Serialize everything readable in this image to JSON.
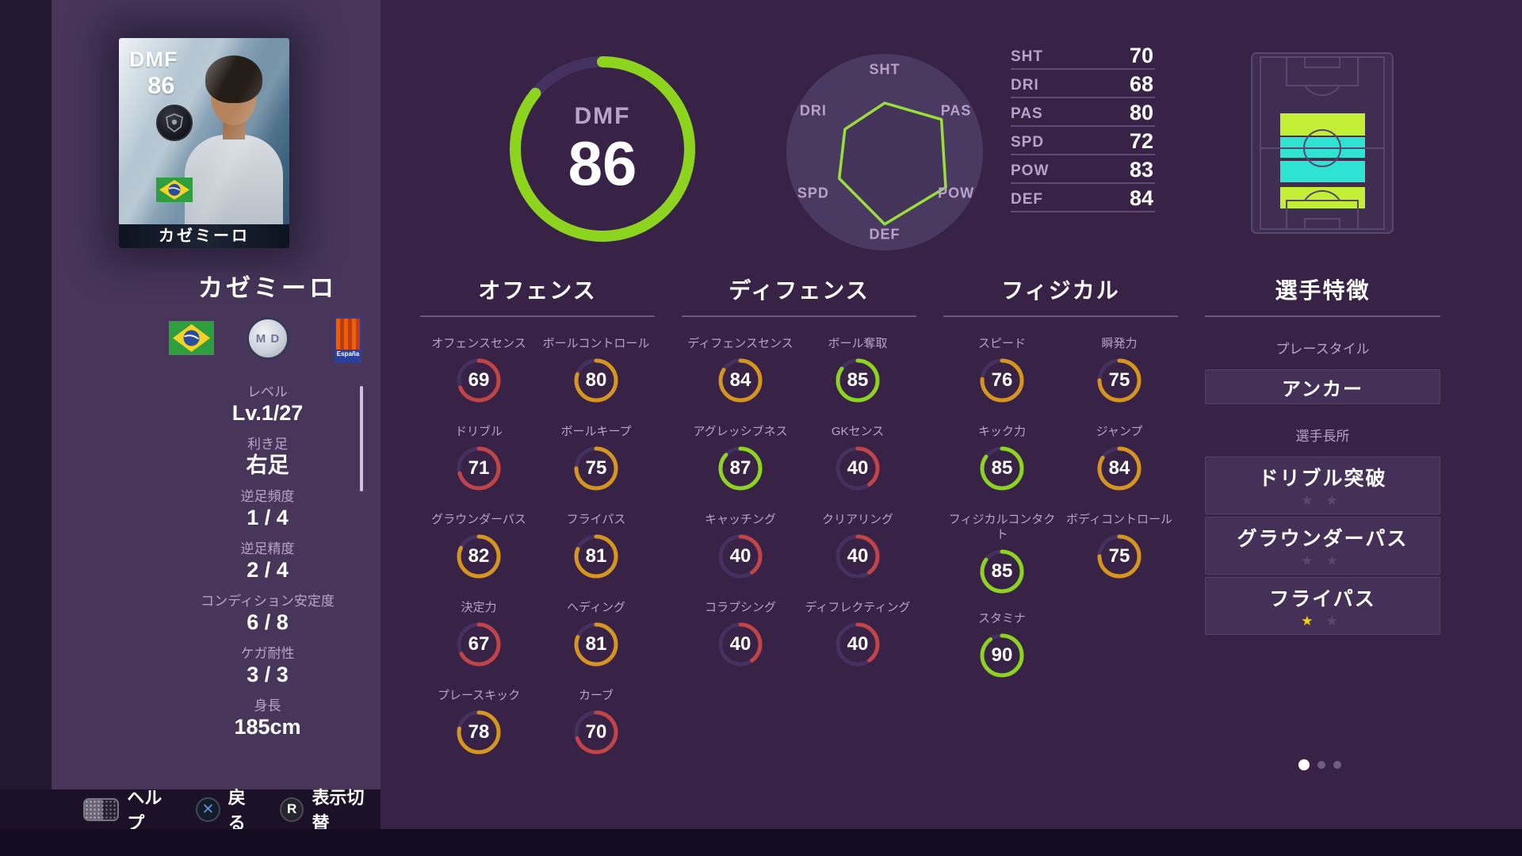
{
  "player": {
    "name": "カゼミーロ",
    "card": {
      "position": "DMF",
      "rating": "86",
      "name": "カゼミーロ"
    },
    "club_emblem_text": "M D",
    "league_badge_text": "España",
    "info": [
      {
        "label": "レベル",
        "value": "Lv.1/27"
      },
      {
        "label": "利き足",
        "value": "右足"
      },
      {
        "label": "逆足頻度",
        "value": "1 / 4"
      },
      {
        "label": "逆足精度",
        "value": "2 / 4"
      },
      {
        "label": "コンディション安定度",
        "value": "6 / 8"
      },
      {
        "label": "ケガ耐性",
        "value": "3 / 3"
      },
      {
        "label": "身長",
        "value": "185cm"
      }
    ]
  },
  "chart_data": {
    "type": "radar",
    "overall": {
      "position": "DMF",
      "rating": "86",
      "ring_fraction": 0.86
    },
    "axes_clockwise_from_top": [
      "SHT",
      "PAS",
      "POW",
      "DEF",
      "SPD",
      "DRI"
    ],
    "list_order": [
      "SHT",
      "DRI",
      "PAS",
      "SPD",
      "POW",
      "DEF"
    ],
    "values": {
      "SHT": 70,
      "DRI": 68,
      "PAS": 80,
      "SPD": 72,
      "POW": 83,
      "DEF": 84
    },
    "scale_min": 40,
    "scale_max": 100,
    "legend": "none",
    "grid": "off"
  },
  "stat_groups": [
    {
      "title": "オフェンス",
      "stats": [
        {
          "label": "オフェンスセンス",
          "value": 69
        },
        {
          "label": "ボールコントロール",
          "value": 80
        },
        {
          "label": "ドリブル",
          "value": 71
        },
        {
          "label": "ボールキープ",
          "value": 75
        },
        {
          "label": "グラウンダーパス",
          "value": 82
        },
        {
          "label": "フライパス",
          "value": 81
        },
        {
          "label": "決定力",
          "value": 67
        },
        {
          "label": "ヘディング",
          "value": 81
        },
        {
          "label": "プレースキック",
          "value": 78
        },
        {
          "label": "カーブ",
          "value": 70
        }
      ]
    },
    {
      "title": "ディフェンス",
      "stats": [
        {
          "label": "ディフェンスセンス",
          "value": 84
        },
        {
          "label": "ボール奪取",
          "value": 85
        },
        {
          "label": "アグレッシブネス",
          "value": 87
        },
        {
          "label": "GKセンス",
          "value": 40
        },
        {
          "label": "キャッチング",
          "value": 40
        },
        {
          "label": "クリアリング",
          "value": 40
        },
        {
          "label": "コラプシング",
          "value": 40
        },
        {
          "label": "ディフレクティング",
          "value": 40
        }
      ]
    },
    {
      "title": "フィジカル",
      "stats": [
        {
          "label": "スピード",
          "value": 76
        },
        {
          "label": "瞬発力",
          "value": 75
        },
        {
          "label": "キック力",
          "value": 85
        },
        {
          "label": "ジャンプ",
          "value": 84
        },
        {
          "label": "フィジカルコンタクト",
          "value": 85
        },
        {
          "label": "ボディコントロール",
          "value": 75
        },
        {
          "label": "スタミナ",
          "value": 90
        }
      ]
    }
  ],
  "traits": {
    "title": "選手特徴",
    "playstyle_label": "プレースタイル",
    "playstyle": "アンカー",
    "skills_label": "選手長所",
    "skills": [
      {
        "name": "ドリブル突破",
        "stars_filled": 0,
        "stars_max": 2
      },
      {
        "name": "グラウンダーパス",
        "stars_filled": 0,
        "stars_max": 2
      },
      {
        "name": "フライパス",
        "stars_filled": 1,
        "stars_max": 2
      }
    ]
  },
  "pagination": {
    "count": 3,
    "active": 0
  },
  "footer": {
    "help_label": "ヘルプ",
    "back_label": "戻る",
    "back_glyph": "✕",
    "toggle_label": "表示切替",
    "toggle_glyph": "R"
  },
  "colors": {
    "accent_green": "#8dd41e",
    "gauge_orange": "#d5951f",
    "gauge_red": "#c04448",
    "gauge_track": "#443160",
    "radar_line": "#9ade3a",
    "position_cyan": "#2fe3d3",
    "position_yellow": "#c2ef35",
    "star_yellow": "#f0d800",
    "star_dim": "#5b4870",
    "back_x_blue": "#5c8fdd"
  }
}
